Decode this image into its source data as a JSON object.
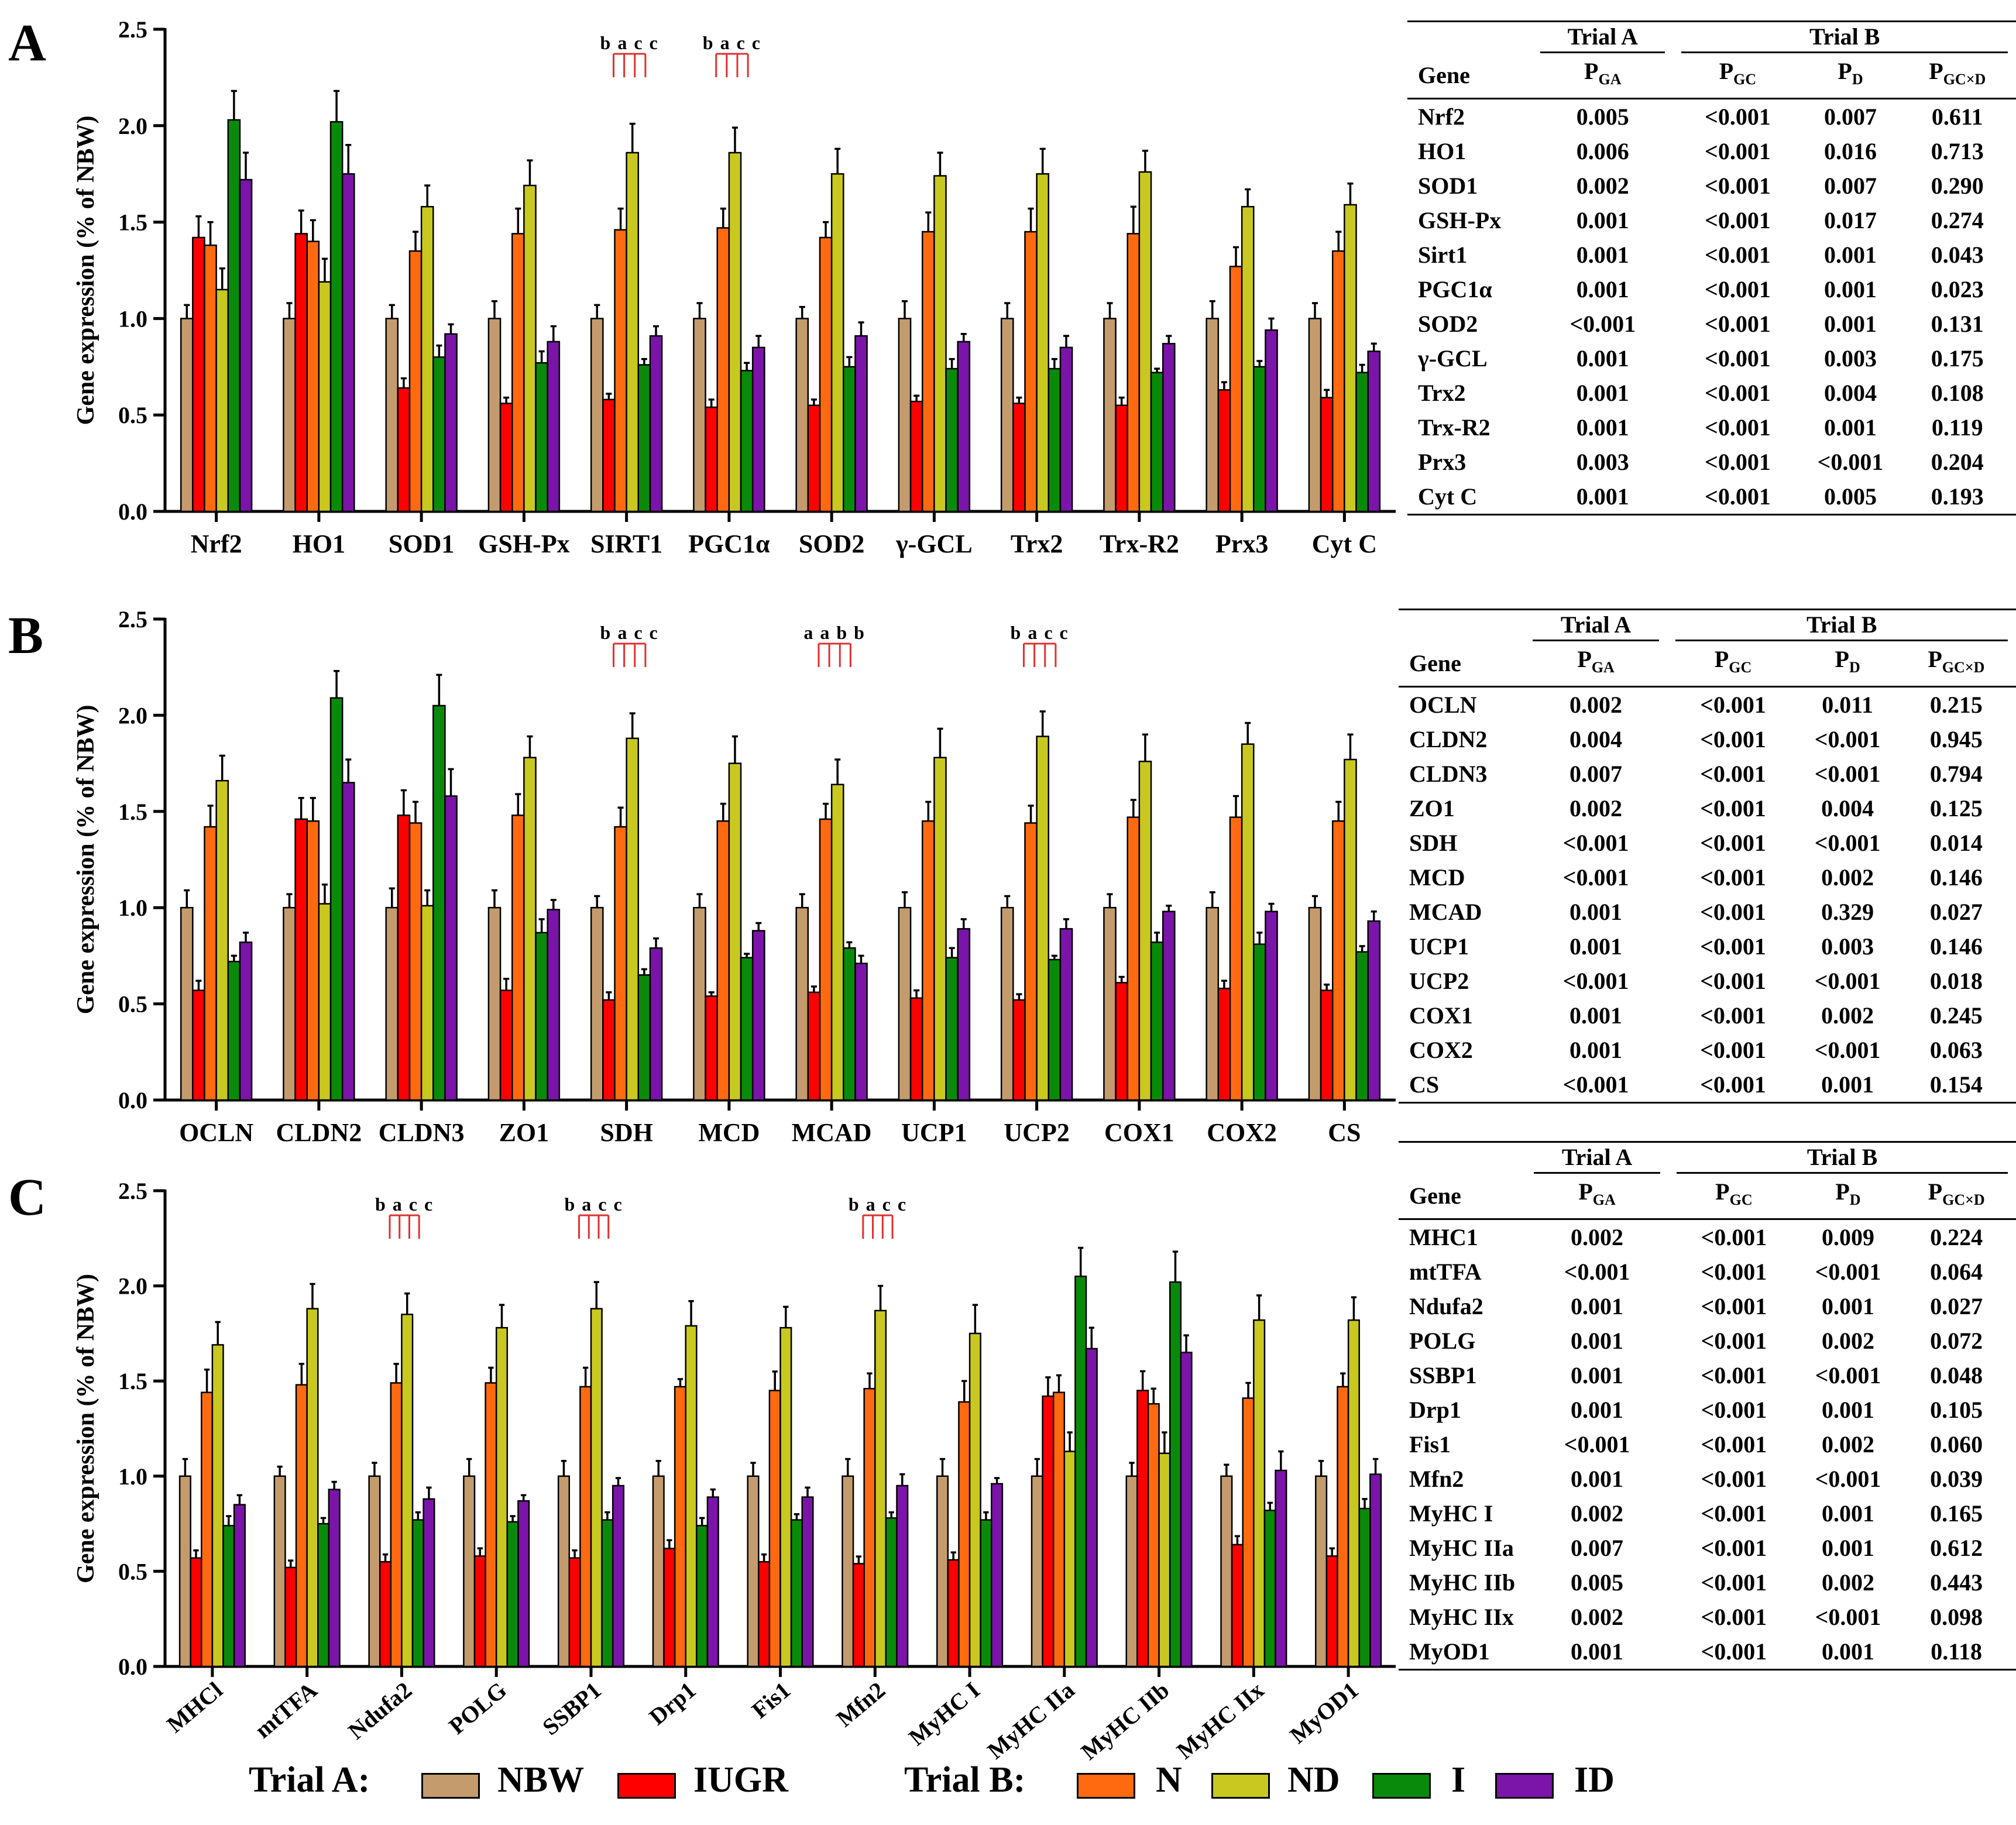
{
  "colors": {
    "NBW": "#c39b6d",
    "IUGR": "#ff0000",
    "N": "#ff6a10",
    "ND": "#c8c820",
    "I": "#0a8a0a",
    "ID": "#7b14a8",
    "sig": "#e03030"
  },
  "legend": {
    "trialA_title": "Trial A:",
    "trialB_title": "Trial B:",
    "items": [
      {
        "key": "NBW",
        "label": "NBW"
      },
      {
        "key": "IUGR",
        "label": "IUGR"
      },
      {
        "key": "N",
        "label": "N"
      },
      {
        "key": "ND",
        "label": "ND"
      },
      {
        "key": "I",
        "label": "I"
      },
      {
        "key": "ID",
        "label": "ID"
      }
    ]
  },
  "chart_data": [
    {
      "panel": "A",
      "type": "bar",
      "ylabel": "Gene expression (% of NBW)",
      "ylim": [
        0,
        2.5
      ],
      "yticks": [
        "0.0",
        "0.5",
        "1.0",
        "1.5",
        "2.0",
        "2.5"
      ],
      "categories": [
        "Nrf2",
        "HO1",
        "SOD1",
        "GSH-Px",
        "SIRT1",
        "PGC1α",
        "SOD2",
        "γ-GCL",
        "Trx2",
        "Trx-R2",
        "Prx3",
        "Cyt C"
      ],
      "series": [
        {
          "name": "NBW",
          "values": [
            1.0,
            1.0,
            1.0,
            1.0,
            1.0,
            1.0,
            1.0,
            1.0,
            1.0,
            1.0,
            1.0,
            1.0
          ],
          "errors": [
            0.07,
            0.08,
            0.07,
            0.09,
            0.07,
            0.08,
            0.06,
            0.09,
            0.08,
            0.08,
            0.09,
            0.08
          ]
        },
        {
          "name": "IUGR",
          "values": [
            1.42,
            1.44,
            0.64,
            0.56,
            0.58,
            0.54,
            0.55,
            0.57,
            0.56,
            0.55,
            0.63,
            0.59
          ],
          "errors": [
            0.11,
            0.12,
            0.05,
            0.03,
            0.03,
            0.04,
            0.03,
            0.03,
            0.03,
            0.04,
            0.04,
            0.04
          ]
        },
        {
          "name": "N",
          "values": [
            1.38,
            1.4,
            1.35,
            1.44,
            1.46,
            1.47,
            1.42,
            1.45,
            1.45,
            1.44,
            1.27,
            1.35
          ],
          "errors": [
            0.12,
            0.11,
            0.1,
            0.13,
            0.11,
            0.1,
            0.08,
            0.1,
            0.12,
            0.14,
            0.1,
            0.1
          ]
        },
        {
          "name": "ND",
          "values": [
            1.15,
            1.19,
            1.58,
            1.69,
            1.86,
            1.86,
            1.75,
            1.74,
            1.75,
            1.76,
            1.58,
            1.59
          ],
          "errors": [
            0.11,
            0.12,
            0.11,
            0.13,
            0.15,
            0.13,
            0.13,
            0.12,
            0.13,
            0.11,
            0.09,
            0.11
          ]
        },
        {
          "name": "I",
          "values": [
            2.03,
            2.02,
            0.8,
            0.77,
            0.76,
            0.73,
            0.75,
            0.74,
            0.74,
            0.72,
            0.75,
            0.72
          ],
          "errors": [
            0.15,
            0.16,
            0.06,
            0.06,
            0.03,
            0.04,
            0.05,
            0.05,
            0.05,
            0.02,
            0.03,
            0.04
          ]
        },
        {
          "name": "ID",
          "values": [
            1.72,
            1.75,
            0.92,
            0.88,
            0.91,
            0.85,
            0.91,
            0.88,
            0.85,
            0.87,
            0.94,
            0.83
          ],
          "errors": [
            0.14,
            0.15,
            0.05,
            0.08,
            0.05,
            0.06,
            0.07,
            0.04,
            0.06,
            0.04,
            0.06,
            0.04
          ]
        }
      ],
      "annotations": [
        {
          "category": "SIRT1",
          "text": "b a c c"
        },
        {
          "category": "PGC1α",
          "text": "b a c c"
        }
      ]
    },
    {
      "panel": "B",
      "type": "bar",
      "ylabel": "Gene expression (% of NBW)",
      "ylim": [
        0,
        2.5
      ],
      "yticks": [
        "0.0",
        "0.5",
        "1.0",
        "1.5",
        "2.0",
        "2.5"
      ],
      "categories": [
        "OCLN",
        "CLDN2",
        "CLDN3",
        "ZO1",
        "SDH",
        "MCD",
        "MCAD",
        "UCP1",
        "UCP2",
        "COX1",
        "COX2",
        "CS"
      ],
      "series": [
        {
          "name": "NBW",
          "values": [
            1.0,
            1.0,
            1.0,
            1.0,
            1.0,
            1.0,
            1.0,
            1.0,
            1.0,
            1.0,
            1.0,
            1.0
          ],
          "errors": [
            0.09,
            0.07,
            0.1,
            0.09,
            0.06,
            0.07,
            0.07,
            0.08,
            0.06,
            0.07,
            0.08,
            0.06
          ]
        },
        {
          "name": "IUGR",
          "values": [
            0.57,
            1.46,
            1.48,
            0.57,
            0.52,
            0.54,
            0.56,
            0.53,
            0.52,
            0.61,
            0.58,
            0.57
          ],
          "errors": [
            0.05,
            0.11,
            0.13,
            0.06,
            0.04,
            0.02,
            0.03,
            0.04,
            0.03,
            0.03,
            0.04,
            0.03
          ]
        },
        {
          "name": "N",
          "values": [
            1.42,
            1.45,
            1.44,
            1.48,
            1.42,
            1.45,
            1.46,
            1.45,
            1.44,
            1.47,
            1.47,
            1.45
          ],
          "errors": [
            0.11,
            0.12,
            0.11,
            0.11,
            0.1,
            0.09,
            0.08,
            0.1,
            0.09,
            0.09,
            0.11,
            0.1
          ]
        },
        {
          "name": "ND",
          "values": [
            1.66,
            1.02,
            1.01,
            1.78,
            1.88,
            1.75,
            1.64,
            1.78,
            1.89,
            1.76,
            1.85,
            1.77
          ],
          "errors": [
            0.13,
            0.1,
            0.08,
            0.11,
            0.13,
            0.14,
            0.13,
            0.15,
            0.13,
            0.14,
            0.11,
            0.13
          ]
        },
        {
          "name": "I",
          "values": [
            0.72,
            2.09,
            2.05,
            0.87,
            0.65,
            0.74,
            0.79,
            0.74,
            0.73,
            0.82,
            0.81,
            0.77
          ],
          "errors": [
            0.03,
            0.14,
            0.16,
            0.07,
            0.03,
            0.02,
            0.03,
            0.05,
            0.02,
            0.05,
            0.06,
            0.03
          ]
        },
        {
          "name": "ID",
          "values": [
            0.82,
            1.65,
            1.58,
            0.99,
            0.79,
            0.88,
            0.71,
            0.89,
            0.89,
            0.98,
            0.98,
            0.93
          ],
          "errors": [
            0.05,
            0.12,
            0.14,
            0.05,
            0.05,
            0.04,
            0.04,
            0.05,
            0.05,
            0.03,
            0.04,
            0.05
          ]
        }
      ],
      "annotations": [
        {
          "category": "SDH",
          "text": "b a c c"
        },
        {
          "category": "MCAD",
          "text": "a a b b"
        },
        {
          "category": "UCP2",
          "text": "b a c c"
        }
      ]
    },
    {
      "panel": "C",
      "type": "bar",
      "ylabel": "Gene expression (% of NBW)",
      "ylim": [
        0,
        2.5
      ],
      "yticks": [
        "0.0",
        "0.5",
        "1.0",
        "1.5",
        "2.0",
        "2.5"
      ],
      "categories": [
        "MHCl",
        "mtTFA",
        "Ndufa2",
        "POLG",
        "SSBP1",
        "Drp1",
        "Fis1",
        "Mfn2",
        "MyHC I",
        "MyHC IIa",
        "MyHC IIb",
        "MyHC IIx",
        "MyOD1"
      ],
      "series": [
        {
          "name": "NBW",
          "values": [
            1.0,
            1.0,
            1.0,
            1.0,
            1.0,
            1.0,
            1.0,
            1.0,
            1.0,
            1.0,
            1.0,
            1.0,
            1.0
          ],
          "errors": [
            0.09,
            0.05,
            0.07,
            0.09,
            0.08,
            0.08,
            0.07,
            0.09,
            0.09,
            0.09,
            0.07,
            0.06,
            0.08
          ]
        },
        {
          "name": "IUGR",
          "values": [
            0.57,
            0.52,
            0.55,
            0.58,
            0.57,
            0.62,
            0.55,
            0.54,
            0.56,
            1.42,
            1.45,
            0.64,
            0.58
          ]
        },
        {
          "name": "N",
          "values": [
            1.44,
            1.48,
            1.49,
            1.49,
            1.47,
            1.47,
            1.45,
            1.46,
            1.39,
            1.44,
            1.38,
            1.41,
            1.47
          ],
          "errors": [
            0.12,
            0.11,
            0.1,
            0.08,
            0.1,
            0.04,
            0.1,
            0.08,
            0.11,
            0.09,
            0.08,
            0.08,
            0.07
          ]
        },
        {
          "name": "ND",
          "values": [
            1.69,
            1.88,
            1.85,
            1.78,
            1.88,
            1.79,
            1.78,
            1.87,
            1.75,
            1.13,
            1.12,
            1.82,
            1.82
          ],
          "errors": [
            0.12,
            0.13,
            0.11,
            0.12,
            0.14,
            0.13,
            0.11,
            0.13,
            0.15,
            0.1,
            0.11,
            0.13,
            0.12
          ]
        },
        {
          "name": "I",
          "values": [
            0.74,
            0.75,
            0.77,
            0.76,
            0.77,
            0.74,
            0.77,
            0.78,
            0.77,
            2.05,
            2.02,
            0.82,
            0.83
          ],
          "errors": [
            0.05,
            0.03,
            0.04,
            0.03,
            0.04,
            0.04,
            0.03,
            0.03,
            0.04,
            0.15,
            0.16,
            0.04,
            0.05
          ]
        },
        {
          "name": "ID",
          "values": [
            0.85,
            0.93,
            0.88,
            0.87,
            0.95,
            0.89,
            0.89,
            0.95,
            0.96,
            1.67,
            1.65,
            1.03,
            1.01
          ],
          "errors": [
            0.05,
            0.04,
            0.06,
            0.03,
            0.04,
            0.04,
            0.05,
            0.06,
            0.03,
            0.11,
            0.09,
            0.1,
            0.08
          ]
        }
      ],
      "annotations": [
        {
          "category": "Ndufa2",
          "text": "b a c c"
        },
        {
          "category": "SSBP1",
          "text": "b a c c"
        },
        {
          "category": "Mfn2",
          "text": "b a c c"
        }
      ]
    }
  ],
  "tables": [
    {
      "panel": "A",
      "header": {
        "trial_a": "Trial A",
        "trial_b": "Trial B",
        "gene": "Gene",
        "p": "P",
        "sub_ga": "GA",
        "sub_gc": "GC",
        "sub_d": "D",
        "sub_gcd": "GC×D"
      },
      "rows": [
        {
          "gene": "Nrf2",
          "pga": "0.005",
          "pgc": "<0.001",
          "pd": "0.007",
          "pgcd": "0.611"
        },
        {
          "gene": "HO1",
          "pga": "0.006",
          "pgc": "<0.001",
          "pd": "0.016",
          "pgcd": "0.713"
        },
        {
          "gene": "SOD1",
          "pga": "0.002",
          "pgc": "<0.001",
          "pd": "0.007",
          "pgcd": "0.290"
        },
        {
          "gene": "GSH-Px",
          "pga": "0.001",
          "pgc": "<0.001",
          "pd": "0.017",
          "pgcd": "0.274"
        },
        {
          "gene": "Sirt1",
          "pga": "0.001",
          "pgc": "<0.001",
          "pd": "0.001",
          "pgcd": "0.043"
        },
        {
          "gene": "PGC1α",
          "pga": "0.001",
          "pgc": "<0.001",
          "pd": "0.001",
          "pgcd": "0.023"
        },
        {
          "gene": "SOD2",
          "pga": "<0.001",
          "pgc": "<0.001",
          "pd": "0.001",
          "pgcd": "0.131"
        },
        {
          "gene": "γ-GCL",
          "pga": "0.001",
          "pgc": "<0.001",
          "pd": "0.003",
          "pgcd": "0.175"
        },
        {
          "gene": "Trx2",
          "pga": "0.001",
          "pgc": "<0.001",
          "pd": "0.004",
          "pgcd": "0.108"
        },
        {
          "gene": "Trx-R2",
          "pga": "0.001",
          "pgc": "<0.001",
          "pd": "0.001",
          "pgcd": "0.119"
        },
        {
          "gene": "Prx3",
          "pga": "0.003",
          "pgc": "<0.001",
          "pd": "<0.001",
          "pgcd": "0.204"
        },
        {
          "gene": "Cyt C",
          "pga": "0.001",
          "pgc": "<0.001",
          "pd": "0.005",
          "pgcd": "0.193"
        }
      ]
    },
    {
      "panel": "B",
      "header": {
        "trial_a": "Trial A",
        "trial_b": "Trial B",
        "gene": "Gene",
        "p": "P",
        "sub_ga": "GA",
        "sub_gc": "GC",
        "sub_d": "D",
        "sub_gcd": "GC×D"
      },
      "rows": [
        {
          "gene": "OCLN",
          "pga": "0.002",
          "pgc": "<0.001",
          "pd": "0.011",
          "pgcd": "0.215"
        },
        {
          "gene": "CLDN2",
          "pga": "0.004",
          "pgc": "<0.001",
          "pd": "<0.001",
          "pgcd": "0.945"
        },
        {
          "gene": "CLDN3",
          "pga": "0.007",
          "pgc": "<0.001",
          "pd": "<0.001",
          "pgcd": "0.794"
        },
        {
          "gene": "ZO1",
          "pga": "0.002",
          "pgc": "<0.001",
          "pd": "0.004",
          "pgcd": "0.125"
        },
        {
          "gene": "SDH",
          "pga": "<0.001",
          "pgc": "<0.001",
          "pd": "<0.001",
          "pgcd": "0.014"
        },
        {
          "gene": "MCD",
          "pga": "<0.001",
          "pgc": "<0.001",
          "pd": "0.002",
          "pgcd": "0.146"
        },
        {
          "gene": "MCAD",
          "pga": "0.001",
          "pgc": "<0.001",
          "pd": "0.329",
          "pgcd": "0.027"
        },
        {
          "gene": "UCP1",
          "pga": "0.001",
          "pgc": "<0.001",
          "pd": "0.003",
          "pgcd": "0.146"
        },
        {
          "gene": "UCP2",
          "pga": "<0.001",
          "pgc": "<0.001",
          "pd": "<0.001",
          "pgcd": "0.018"
        },
        {
          "gene": "COX1",
          "pga": "0.001",
          "pgc": "<0.001",
          "pd": "0.002",
          "pgcd": "0.245"
        },
        {
          "gene": "COX2",
          "pga": "0.001",
          "pgc": "<0.001",
          "pd": "<0.001",
          "pgcd": "0.063"
        },
        {
          "gene": "CS",
          "pga": "<0.001",
          "pgc": "<0.001",
          "pd": "0.001",
          "pgcd": "0.154"
        }
      ]
    },
    {
      "panel": "C",
      "header": {
        "trial_a": "Trial A",
        "trial_b": "Trial B",
        "gene": "Gene",
        "p": "P",
        "sub_ga": "GA",
        "sub_gc": "GC",
        "sub_d": "D",
        "sub_gcd": "GC×D"
      },
      "rows": [
        {
          "gene": "MHC1",
          "pga": "0.002",
          "pgc": "<0.001",
          "pd": "0.009",
          "pgcd": "0.224"
        },
        {
          "gene": "mtTFA",
          "pga": "<0.001",
          "pgc": "<0.001",
          "pd": "<0.001",
          "pgcd": "0.064"
        },
        {
          "gene": "Ndufa2",
          "pga": "0.001",
          "pgc": "<0.001",
          "pd": "0.001",
          "pgcd": "0.027"
        },
        {
          "gene": "POLG",
          "pga": "0.001",
          "pgc": "<0.001",
          "pd": "0.002",
          "pgcd": "0.072"
        },
        {
          "gene": "SSBP1",
          "pga": "0.001",
          "pgc": "<0.001",
          "pd": "<0.001",
          "pgcd": "0.048"
        },
        {
          "gene": "Drp1",
          "pga": "0.001",
          "pgc": "<0.001",
          "pd": "0.001",
          "pgcd": "0.105"
        },
        {
          "gene": "Fis1",
          "pga": "<0.001",
          "pgc": "<0.001",
          "pd": "0.002",
          "pgcd": "0.060"
        },
        {
          "gene": "Mfn2",
          "pga": "0.001",
          "pgc": "<0.001",
          "pd": "<0.001",
          "pgcd": "0.039"
        },
        {
          "gene": "MyHC I",
          "pga": "0.002",
          "pgc": "<0.001",
          "pd": "0.001",
          "pgcd": "0.165"
        },
        {
          "gene": "MyHC IIa",
          "pga": "0.007",
          "pgc": "<0.001",
          "pd": "0.001",
          "pgcd": "0.612"
        },
        {
          "gene": "MyHC IIb",
          "pga": "0.005",
          "pgc": "<0.001",
          "pd": "0.002",
          "pgcd": "0.443"
        },
        {
          "gene": "MyHC IIx",
          "pga": "0.002",
          "pgc": "<0.001",
          "pd": "<0.001",
          "pgcd": "0.098"
        },
        {
          "gene": "MyOD1",
          "pga": "0.001",
          "pgc": "<0.001",
          "pd": "0.001",
          "pgcd": "0.118"
        }
      ]
    }
  ]
}
